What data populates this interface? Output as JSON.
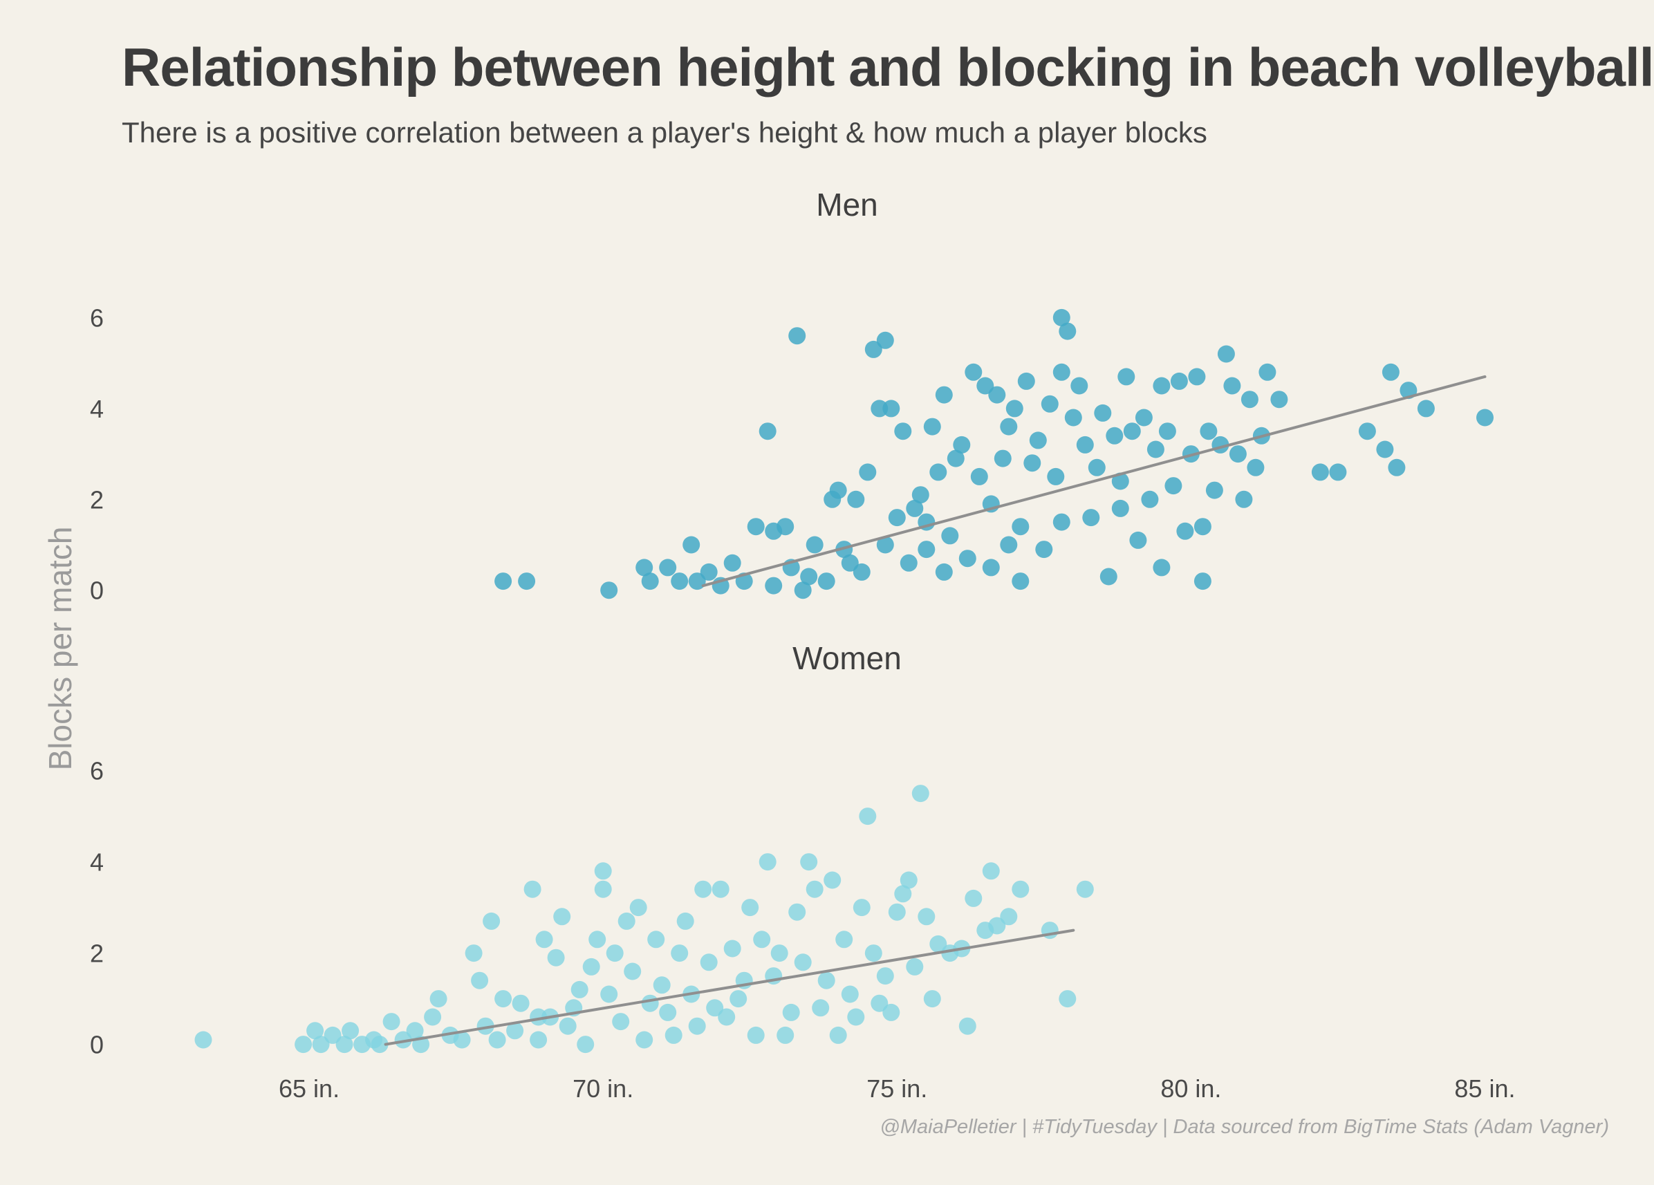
{
  "title": "Relationship between height and blocking in beach volleyball",
  "subtitle": "There is a positive correlation between a player's height & how much a player blocks",
  "caption": "@MaiaPelletier | #TidyTuesday | Data sourced from BigTime Stats (Adam Vagner)",
  "colors": {
    "background": "#f4f1e9",
    "men_points": "#43a9c7",
    "women_points": "#80d3e2",
    "trend_line": "#8f8f8f",
    "axis_title": "#9a9a9a"
  },
  "chart_data": {
    "type": "scatter",
    "ylabel": "Blocks per match",
    "xlabel": "",
    "xlim": [
      61.8,
      86.5
    ],
    "x_ticks": [
      65,
      70,
      75,
      80,
      85
    ],
    "x_tick_labels": [
      "65 in.",
      "70 in.",
      "75 in.",
      "80 in.",
      "85 in."
    ],
    "ylim": [
      -0.4,
      6.6
    ],
    "y_ticks": [
      0,
      2,
      4,
      6
    ],
    "y_tick_labels": [
      "0",
      "2",
      "4",
      "6"
    ],
    "grid": false,
    "legend": "none",
    "panels": [
      {
        "name": "Men",
        "trend": {
          "x": [
            71.7,
            85
          ],
          "y": [
            0.1,
            4.7
          ]
        },
        "points": [
          [
            68.3,
            0.2
          ],
          [
            68.7,
            0.2
          ],
          [
            70.1,
            0.0
          ],
          [
            70.7,
            0.5
          ],
          [
            70.8,
            0.2
          ],
          [
            71.1,
            0.5
          ],
          [
            71.3,
            0.2
          ],
          [
            71.5,
            1.0
          ],
          [
            71.6,
            0.2
          ],
          [
            71.8,
            0.4
          ],
          [
            72.0,
            0.1
          ],
          [
            72.2,
            0.6
          ],
          [
            72.4,
            0.2
          ],
          [
            72.6,
            1.4
          ],
          [
            72.8,
            3.5
          ],
          [
            72.9,
            1.3
          ],
          [
            73.1,
            1.4
          ],
          [
            73.2,
            0.5
          ],
          [
            73.3,
            5.6
          ],
          [
            73.5,
            0.3
          ],
          [
            73.6,
            1.0
          ],
          [
            73.8,
            0.2
          ],
          [
            73.9,
            2.0
          ],
          [
            74.0,
            2.2
          ],
          [
            74.1,
            0.9
          ],
          [
            74.3,
            2.0
          ],
          [
            74.4,
            0.4
          ],
          [
            74.5,
            2.6
          ],
          [
            74.6,
            5.3
          ],
          [
            74.7,
            4.0
          ],
          [
            74.8,
            5.5
          ],
          [
            74.9,
            4.0
          ],
          [
            75.0,
            1.6
          ],
          [
            75.1,
            3.5
          ],
          [
            75.2,
            0.6
          ],
          [
            75.3,
            1.8
          ],
          [
            75.4,
            2.1
          ],
          [
            75.5,
            0.9
          ],
          [
            75.6,
            3.6
          ],
          [
            75.7,
            2.6
          ],
          [
            75.8,
            4.3
          ],
          [
            75.9,
            1.2
          ],
          [
            76.0,
            2.9
          ],
          [
            76.1,
            3.2
          ],
          [
            76.2,
            0.7
          ],
          [
            76.3,
            4.8
          ],
          [
            76.4,
            2.5
          ],
          [
            76.5,
            4.5
          ],
          [
            76.6,
            1.9
          ],
          [
            76.7,
            4.3
          ],
          [
            76.8,
            2.9
          ],
          [
            76.9,
            3.6
          ],
          [
            77.0,
            4.0
          ],
          [
            77.1,
            1.4
          ],
          [
            77.2,
            4.6
          ],
          [
            77.3,
            2.8
          ],
          [
            77.4,
            3.3
          ],
          [
            77.5,
            0.9
          ],
          [
            77.6,
            4.1
          ],
          [
            77.7,
            2.5
          ],
          [
            77.8,
            6.0
          ],
          [
            77.9,
            5.7
          ],
          [
            77.8,
            4.8
          ],
          [
            78.0,
            3.8
          ],
          [
            78.1,
            4.5
          ],
          [
            78.2,
            3.2
          ],
          [
            78.3,
            1.6
          ],
          [
            78.4,
            2.7
          ],
          [
            78.5,
            3.9
          ],
          [
            78.6,
            0.3
          ],
          [
            78.7,
            3.4
          ],
          [
            78.8,
            2.4
          ],
          [
            78.9,
            4.7
          ],
          [
            79.0,
            3.5
          ],
          [
            79.1,
            1.1
          ],
          [
            79.2,
            3.8
          ],
          [
            79.3,
            2.0
          ],
          [
            79.4,
            3.1
          ],
          [
            79.5,
            4.5
          ],
          [
            79.6,
            3.5
          ],
          [
            79.7,
            2.3
          ],
          [
            79.8,
            4.6
          ],
          [
            79.9,
            1.3
          ],
          [
            80.0,
            3.0
          ],
          [
            80.1,
            4.7
          ],
          [
            80.2,
            0.2
          ],
          [
            80.3,
            3.5
          ],
          [
            80.4,
            2.2
          ],
          [
            80.5,
            3.2
          ],
          [
            80.6,
            5.2
          ],
          [
            80.7,
            4.5
          ],
          [
            80.8,
            3.0
          ],
          [
            80.9,
            2.0
          ],
          [
            81.0,
            4.2
          ],
          [
            81.1,
            2.7
          ],
          [
            81.2,
            3.4
          ],
          [
            81.3,
            4.8
          ],
          [
            81.5,
            4.2
          ],
          [
            82.2,
            2.6
          ],
          [
            82.5,
            2.6
          ],
          [
            83.0,
            3.5
          ],
          [
            83.3,
            3.1
          ],
          [
            83.4,
            4.8
          ],
          [
            83.5,
            2.7
          ],
          [
            83.7,
            4.4
          ],
          [
            84.0,
            4.0
          ],
          [
            85.0,
            3.8
          ],
          [
            77.1,
            0.2
          ],
          [
            72.9,
            0.1
          ],
          [
            74.8,
            1.0
          ],
          [
            75.5,
            1.5
          ],
          [
            76.6,
            0.5
          ],
          [
            77.8,
            1.5
          ],
          [
            78.8,
            1.8
          ],
          [
            79.5,
            0.5
          ],
          [
            80.2,
            1.4
          ],
          [
            73.4,
            0.0
          ],
          [
            74.2,
            0.6
          ],
          [
            75.8,
            0.4
          ],
          [
            76.9,
            1.0
          ]
        ]
      },
      {
        "name": "Women",
        "trend": {
          "x": [
            66.3,
            78
          ],
          "y": [
            0.0,
            2.5
          ]
        },
        "points": [
          [
            63.2,
            0.1
          ],
          [
            64.9,
            0.0
          ],
          [
            65.1,
            0.3
          ],
          [
            65.2,
            0.0
          ],
          [
            65.4,
            0.2
          ],
          [
            65.6,
            0.0
          ],
          [
            65.7,
            0.3
          ],
          [
            65.9,
            0.0
          ],
          [
            66.1,
            0.1
          ],
          [
            66.2,
            0.0
          ],
          [
            66.4,
            0.5
          ],
          [
            66.6,
            0.1
          ],
          [
            66.8,
            0.3
          ],
          [
            66.9,
            0.0
          ],
          [
            67.1,
            0.6
          ],
          [
            67.2,
            1.0
          ],
          [
            67.4,
            0.2
          ],
          [
            67.6,
            0.1
          ],
          [
            67.8,
            2.0
          ],
          [
            67.9,
            1.4
          ],
          [
            68.0,
            0.4
          ],
          [
            68.1,
            2.7
          ],
          [
            68.2,
            0.1
          ],
          [
            68.3,
            1.0
          ],
          [
            68.5,
            0.3
          ],
          [
            68.6,
            0.9
          ],
          [
            68.8,
            3.4
          ],
          [
            68.9,
            0.1
          ],
          [
            69.0,
            2.3
          ],
          [
            69.1,
            0.6
          ],
          [
            69.2,
            1.9
          ],
          [
            69.3,
            2.8
          ],
          [
            69.5,
            0.8
          ],
          [
            69.6,
            1.2
          ],
          [
            69.7,
            0.0
          ],
          [
            69.8,
            1.7
          ],
          [
            69.9,
            2.3
          ],
          [
            70.0,
            3.4
          ],
          [
            70.0,
            3.8
          ],
          [
            70.2,
            2.0
          ],
          [
            70.3,
            0.5
          ],
          [
            70.4,
            2.7
          ],
          [
            70.5,
            1.6
          ],
          [
            70.6,
            3.0
          ],
          [
            70.8,
            0.9
          ],
          [
            70.9,
            2.3
          ],
          [
            71.0,
            1.3
          ],
          [
            71.2,
            0.2
          ],
          [
            71.3,
            2.0
          ],
          [
            71.4,
            2.7
          ],
          [
            71.5,
            1.1
          ],
          [
            71.6,
            0.4
          ],
          [
            71.7,
            3.4
          ],
          [
            71.8,
            1.8
          ],
          [
            72.0,
            3.4
          ],
          [
            72.1,
            0.6
          ],
          [
            72.2,
            2.1
          ],
          [
            72.3,
            1.0
          ],
          [
            72.5,
            3.0
          ],
          [
            72.6,
            0.2
          ],
          [
            72.7,
            2.3
          ],
          [
            72.8,
            4.0
          ],
          [
            72.9,
            1.5
          ],
          [
            73.0,
            2.0
          ],
          [
            73.2,
            0.7
          ],
          [
            73.3,
            2.9
          ],
          [
            73.4,
            1.8
          ],
          [
            73.5,
            4.0
          ],
          [
            73.6,
            3.4
          ],
          [
            73.7,
            0.8
          ],
          [
            73.8,
            1.4
          ],
          [
            73.9,
            3.6
          ],
          [
            74.0,
            0.2
          ],
          [
            74.1,
            2.3
          ],
          [
            74.2,
            1.1
          ],
          [
            74.3,
            0.6
          ],
          [
            74.4,
            3.0
          ],
          [
            74.5,
            5.0
          ],
          [
            74.6,
            2.0
          ],
          [
            74.7,
            0.9
          ],
          [
            74.8,
            1.5
          ],
          [
            74.9,
            0.7
          ],
          [
            75.0,
            2.9
          ],
          [
            75.1,
            3.3
          ],
          [
            75.2,
            3.6
          ],
          [
            75.3,
            1.7
          ],
          [
            75.4,
            5.5
          ],
          [
            75.5,
            2.8
          ],
          [
            75.6,
            1.0
          ],
          [
            75.7,
            2.2
          ],
          [
            75.9,
            2.0
          ],
          [
            76.1,
            2.1
          ],
          [
            76.2,
            0.4
          ],
          [
            76.3,
            3.2
          ],
          [
            76.5,
            2.5
          ],
          [
            76.6,
            3.8
          ],
          [
            76.7,
            2.6
          ],
          [
            76.9,
            2.8
          ],
          [
            77.1,
            3.4
          ],
          [
            77.6,
            2.5
          ],
          [
            77.9,
            1.0
          ],
          [
            78.2,
            3.4
          ],
          [
            69.4,
            0.4
          ],
          [
            70.7,
            0.1
          ],
          [
            71.9,
            0.8
          ],
          [
            72.4,
            1.4
          ],
          [
            73.1,
            0.2
          ],
          [
            68.9,
            0.6
          ],
          [
            70.1,
            1.1
          ],
          [
            71.1,
            0.7
          ]
        ]
      }
    ]
  }
}
